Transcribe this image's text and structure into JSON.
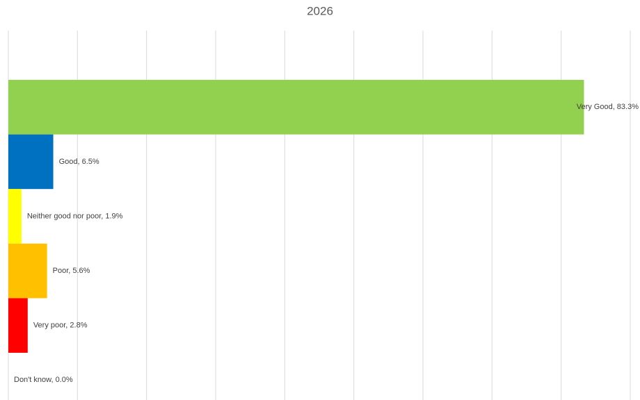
{
  "chart_data": {
    "type": "hbar",
    "title": "2026",
    "values": [
      83.3,
      6.5,
      1.9,
      5.6,
      2.8,
      0.0
    ],
    "value_labels": [
      "Very Good, 83.3%",
      "Good, 6.5%",
      "Neither good nor poor, 1.9%",
      "Poor, 5.6%",
      "Very poor, 2.8%",
      "Don't know, 0.0%"
    ],
    "colors": [
      "#92d050",
      "#0070c0",
      "#ffff00",
      "#ffc000",
      "#ff0000",
      "#a5a5a5"
    ],
    "xlim": [
      0,
      90
    ],
    "xticks": [
      0,
      10,
      20,
      30,
      40,
      50,
      60,
      70,
      80,
      90
    ],
    "grid": true
  }
}
